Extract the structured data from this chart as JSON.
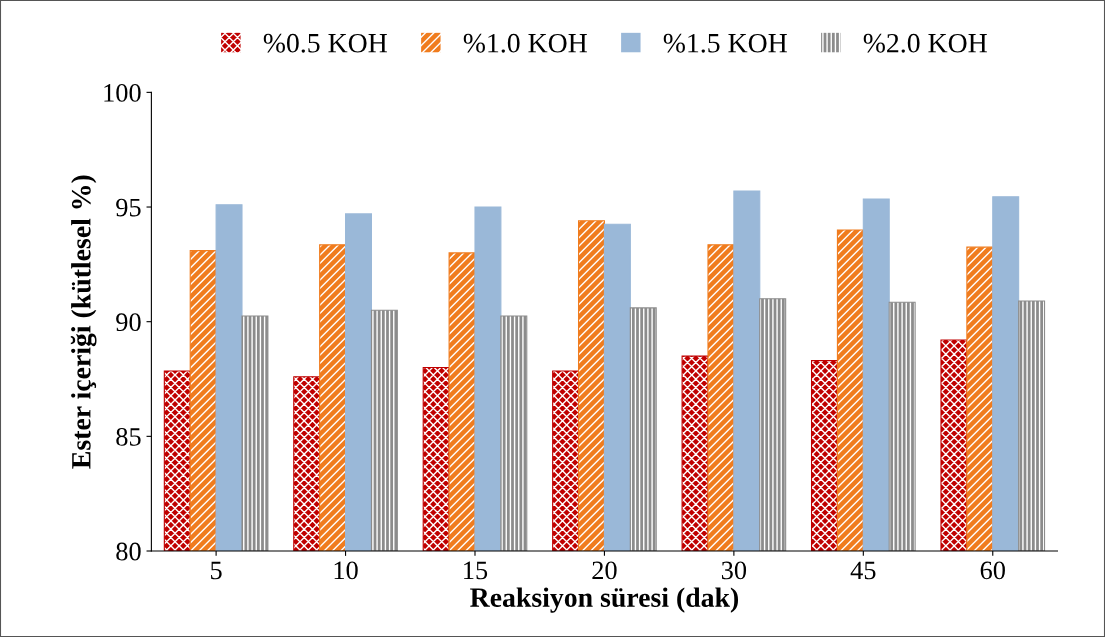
{
  "chart_data": {
    "type": "bar",
    "xlabel": "Reaksiyon süresi (dak)",
    "ylabel": "Ester içeriği (kütlesel %)",
    "categories": [
      "5",
      "10",
      "15",
      "20",
      "30",
      "45",
      "60"
    ],
    "series": [
      {
        "name": "%0.5 KOH",
        "color": "#c00000",
        "values": [
          87.85,
          87.6,
          88.0,
          87.85,
          88.5,
          88.3,
          89.2
        ]
      },
      {
        "name": "%1.0 KOH",
        "color": "#f07c1e",
        "values": [
          93.1,
          93.35,
          93.0,
          94.4,
          93.35,
          94.0,
          93.25
        ]
      },
      {
        "name": "%1.5 KOH",
        "color": "#9ab8d8",
        "values": [
          95.1,
          94.7,
          95.0,
          94.25,
          95.7,
          95.35,
          95.45
        ]
      },
      {
        "name": "%2.0 KOH",
        "color": "#8c8c8c",
        "values": [
          90.25,
          90.5,
          90.25,
          90.6,
          91.0,
          90.85,
          90.9
        ]
      }
    ],
    "ylim": [
      80,
      100
    ],
    "yticks": [
      80,
      85,
      90,
      95,
      100
    ],
    "grid": false,
    "legend": "top"
  }
}
